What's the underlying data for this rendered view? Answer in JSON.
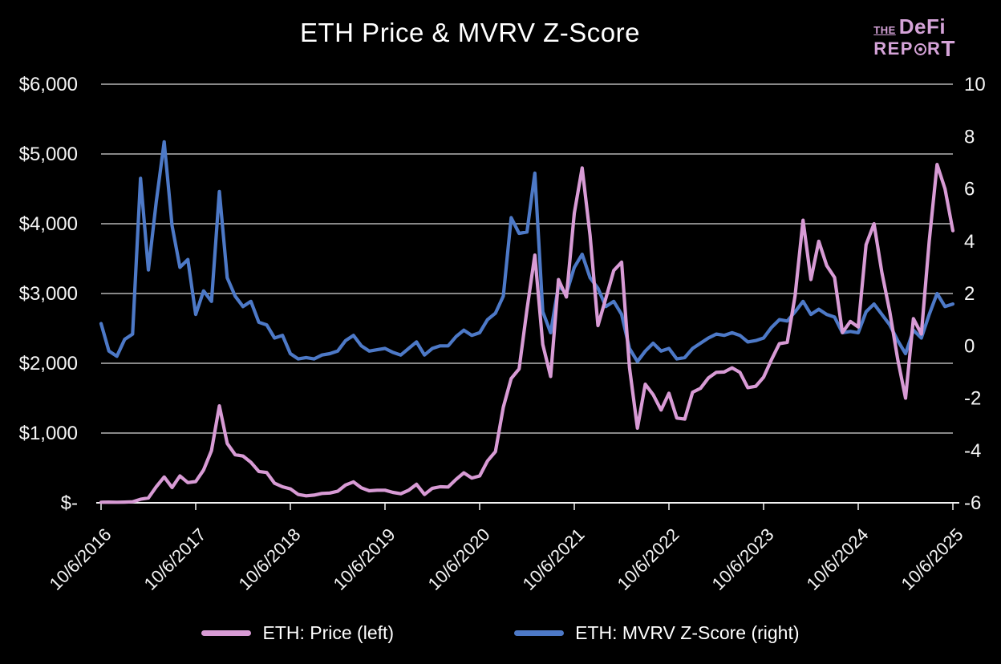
{
  "header": {
    "title": "ETH Price & MVRV Z-Score"
  },
  "logo": {
    "line1_small": "THE",
    "line1_main": "DeFi",
    "line2_pre": "REP",
    "line2_mid": "R",
    "line2_end": "T",
    "icon": "bullseye-icon",
    "color": "#d5a3d8"
  },
  "chart_data": {
    "type": "line",
    "title": "ETH Price & MVRV Z-Score",
    "background": "#000000",
    "grid": "horizontal",
    "grid_color": "#d9d9d9",
    "legend_position": "bottom",
    "x_start": "10/6/2016",
    "x_end": "10/6/2025",
    "x_interval": "monthly",
    "x_tick_labels": [
      "10/6/2016",
      "10/6/2017",
      "10/6/2018",
      "10/6/2019",
      "10/6/2020",
      "10/6/2021",
      "10/6/2022",
      "10/6/2023",
      "10/6/2024",
      "10/6/2025"
    ],
    "left_axis": {
      "min": 0,
      "max": 6000,
      "tick_step": 1000,
      "labels": [
        "$6,000",
        "$5,000",
        "$4,000",
        "$3,000",
        "$2,000",
        "$1,000",
        "$-"
      ]
    },
    "right_axis": {
      "min": -6,
      "max": 10,
      "tick_step": 2,
      "labels": [
        "10",
        "8",
        "6",
        "4",
        "2",
        "0",
        "-2",
        "-4",
        "-6"
      ]
    },
    "series": [
      {
        "name": "ETH: Price (left)",
        "axis": "left",
        "unit": "USD",
        "color": "#d89bd5",
        "values": [
          8,
          10,
          8,
          10,
          15,
          50,
          70,
          230,
          370,
          220,
          385,
          290,
          305,
          470,
          750,
          1390,
          850,
          690,
          670,
          580,
          450,
          435,
          280,
          230,
          200,
          120,
          100,
          110,
          135,
          140,
          165,
          255,
          300,
          215,
          172,
          180,
          181,
          150,
          130,
          180,
          265,
          120,
          208,
          230,
          226,
          335,
          430,
          355,
          385,
          600,
          735,
          1370,
          1780,
          1920,
          2770,
          3550,
          2270,
          1810,
          3200,
          2950,
          4150,
          4800,
          3830,
          2540,
          2930,
          3330,
          3450,
          1940,
          1070,
          1700,
          1550,
          1330,
          1570,
          1215,
          1200,
          1585,
          1640,
          1790,
          1870,
          1875,
          1935,
          1870,
          1650,
          1670,
          1800,
          2050,
          2280,
          2300,
          2970,
          4050,
          3200,
          3750,
          3400,
          3230,
          2440,
          2600,
          2520,
          3700,
          4000,
          3300,
          2740,
          2060,
          1500,
          2640,
          2420,
          3750,
          4850,
          4500,
          3900
        ]
      },
      {
        "name": "ETH: MVRV Z-Score (right)",
        "axis": "right",
        "unit": "z-score",
        "color": "#4d79c7",
        "values": [
          0.85,
          -0.2,
          -0.4,
          0.25,
          0.45,
          6.4,
          2.9,
          5.5,
          7.8,
          4.6,
          3.0,
          3.3,
          1.2,
          2.1,
          1.7,
          5.9,
          2.6,
          1.9,
          1.5,
          1.7,
          0.9,
          0.8,
          0.3,
          0.4,
          -0.3,
          -0.5,
          -0.45,
          -0.5,
          -0.35,
          -0.3,
          -0.2,
          0.2,
          0.4,
          0.0,
          -0.2,
          -0.15,
          -0.1,
          -0.25,
          -0.35,
          -0.1,
          0.15,
          -0.35,
          -0.1,
          0.0,
          0.0,
          0.35,
          0.6,
          0.4,
          0.5,
          1.0,
          1.25,
          1.9,
          4.9,
          4.3,
          4.35,
          6.6,
          1.3,
          0.5,
          2.3,
          2.0,
          3.0,
          3.5,
          2.6,
          2.2,
          1.5,
          1.7,
          1.2,
          -0.1,
          -0.6,
          -0.2,
          0.1,
          -0.2,
          -0.1,
          -0.5,
          -0.45,
          -0.1,
          0.1,
          0.3,
          0.45,
          0.4,
          0.5,
          0.4,
          0.15,
          0.2,
          0.3,
          0.7,
          1.0,
          0.95,
          1.3,
          1.7,
          1.2,
          1.4,
          1.2,
          1.1,
          0.5,
          0.55,
          0.5,
          1.3,
          1.6,
          1.2,
          0.8,
          0.2,
          -0.3,
          0.6,
          0.3,
          1.2,
          2.0,
          1.5,
          1.6
        ]
      }
    ]
  },
  "legend": {
    "entries": [
      {
        "label": "ETH: Price (left)",
        "color": "#d89bd5"
      },
      {
        "label": "ETH: MVRV Z-Score (right)",
        "color": "#4d79c7"
      }
    ]
  }
}
